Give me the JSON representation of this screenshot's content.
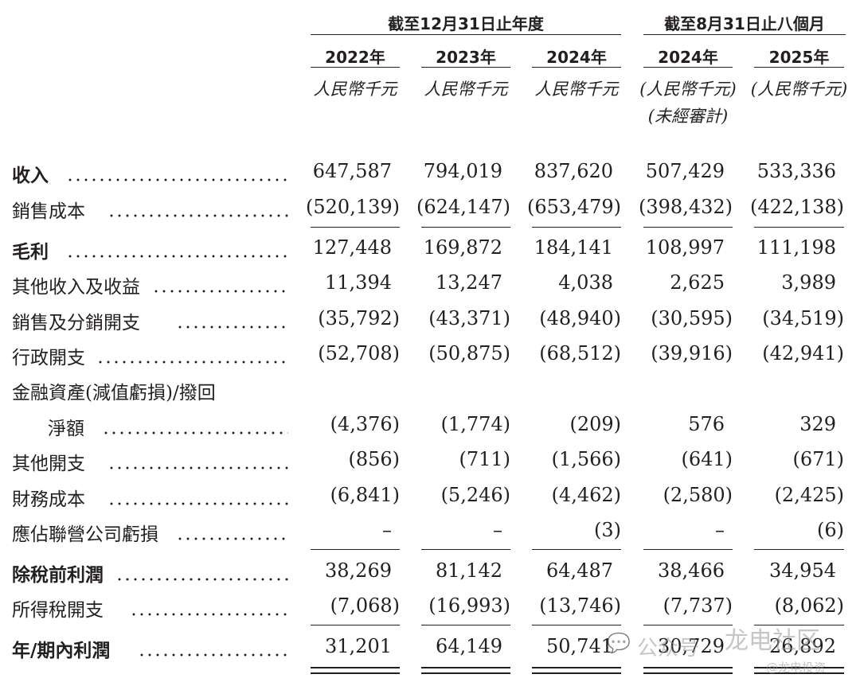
{
  "header": {
    "group_fy": "截至12月31日止年度",
    "group_8m": "截至8月31日止八個月",
    "columns": [
      {
        "year": "2022年",
        "unit": "人民幣千元",
        "note": ""
      },
      {
        "year": "2023年",
        "unit": "人民幣千元",
        "note": ""
      },
      {
        "year": "2024年",
        "unit": "人民幣千元",
        "note": ""
      },
      {
        "year": "2024年",
        "unit": "(人民幣千元)",
        "note": "(未經審計)"
      },
      {
        "year": "2025年",
        "unit": "(人民幣千元)",
        "note": ""
      }
    ]
  },
  "rows": [
    {
      "label": "收入",
      "bold": true,
      "values": [
        "647,587",
        "794,019",
        "837,620",
        "507,429",
        "533,336"
      ]
    },
    {
      "label": "銷售成本",
      "bold": false,
      "values": [
        "(520,139)",
        "(624,147)",
        "(653,479)",
        "(398,432)",
        "(422,138)"
      ]
    },
    {
      "label": "毛利",
      "bold": true,
      "values": [
        "127,448",
        "169,872",
        "184,141",
        "108,997",
        "111,198"
      ]
    },
    {
      "label": "其他收入及收益",
      "bold": false,
      "values": [
        "11,394",
        "13,247",
        "4,038",
        "2,625",
        "3,989"
      ]
    },
    {
      "label": "銷售及分銷開支",
      "bold": false,
      "values": [
        "(35,792)",
        "(43,371)",
        "(48,940)",
        "(30,595)",
        "(34,519)"
      ]
    },
    {
      "label": "行政開支",
      "bold": false,
      "values": [
        "(52,708)",
        "(50,875)",
        "(68,512)",
        "(39,916)",
        "(42,941)"
      ]
    },
    {
      "label": "金融資產(減值虧損)/撥回",
      "bold": false,
      "values": []
    },
    {
      "label": "淨額",
      "bold": false,
      "values": [
        "(4,376)",
        "(1,774)",
        "(209)",
        "576",
        "329"
      ]
    },
    {
      "label": "其他開支",
      "bold": false,
      "values": [
        "(856)",
        "(711)",
        "(1,566)",
        "(641)",
        "(671)"
      ]
    },
    {
      "label": "財務成本",
      "bold": false,
      "values": [
        "(6,841)",
        "(5,246)",
        "(4,462)",
        "(2,580)",
        "(2,425)"
      ]
    },
    {
      "label": "應佔聯營公司虧損",
      "bold": false,
      "values": [
        "–",
        "–",
        "(3)",
        "–",
        "(6)"
      ]
    },
    {
      "label": "除稅前利潤",
      "bold": true,
      "values": [
        "38,269",
        "81,142",
        "64,487",
        "38,466",
        "34,954"
      ]
    },
    {
      "label": "所得稅開支",
      "bold": false,
      "values": [
        "(7,068)",
        "(16,993)",
        "(13,746)",
        "(7,737)",
        "(8,062)"
      ]
    },
    {
      "label": "年/期內利潤",
      "bold": true,
      "values": [
        "31,201",
        "64,149",
        "50,741",
        "30,729",
        "26,892"
      ]
    }
  ],
  "watermark": {
    "text1": "公众号",
    "text2": "龙电社区",
    "text3": "@龙电投资"
  }
}
